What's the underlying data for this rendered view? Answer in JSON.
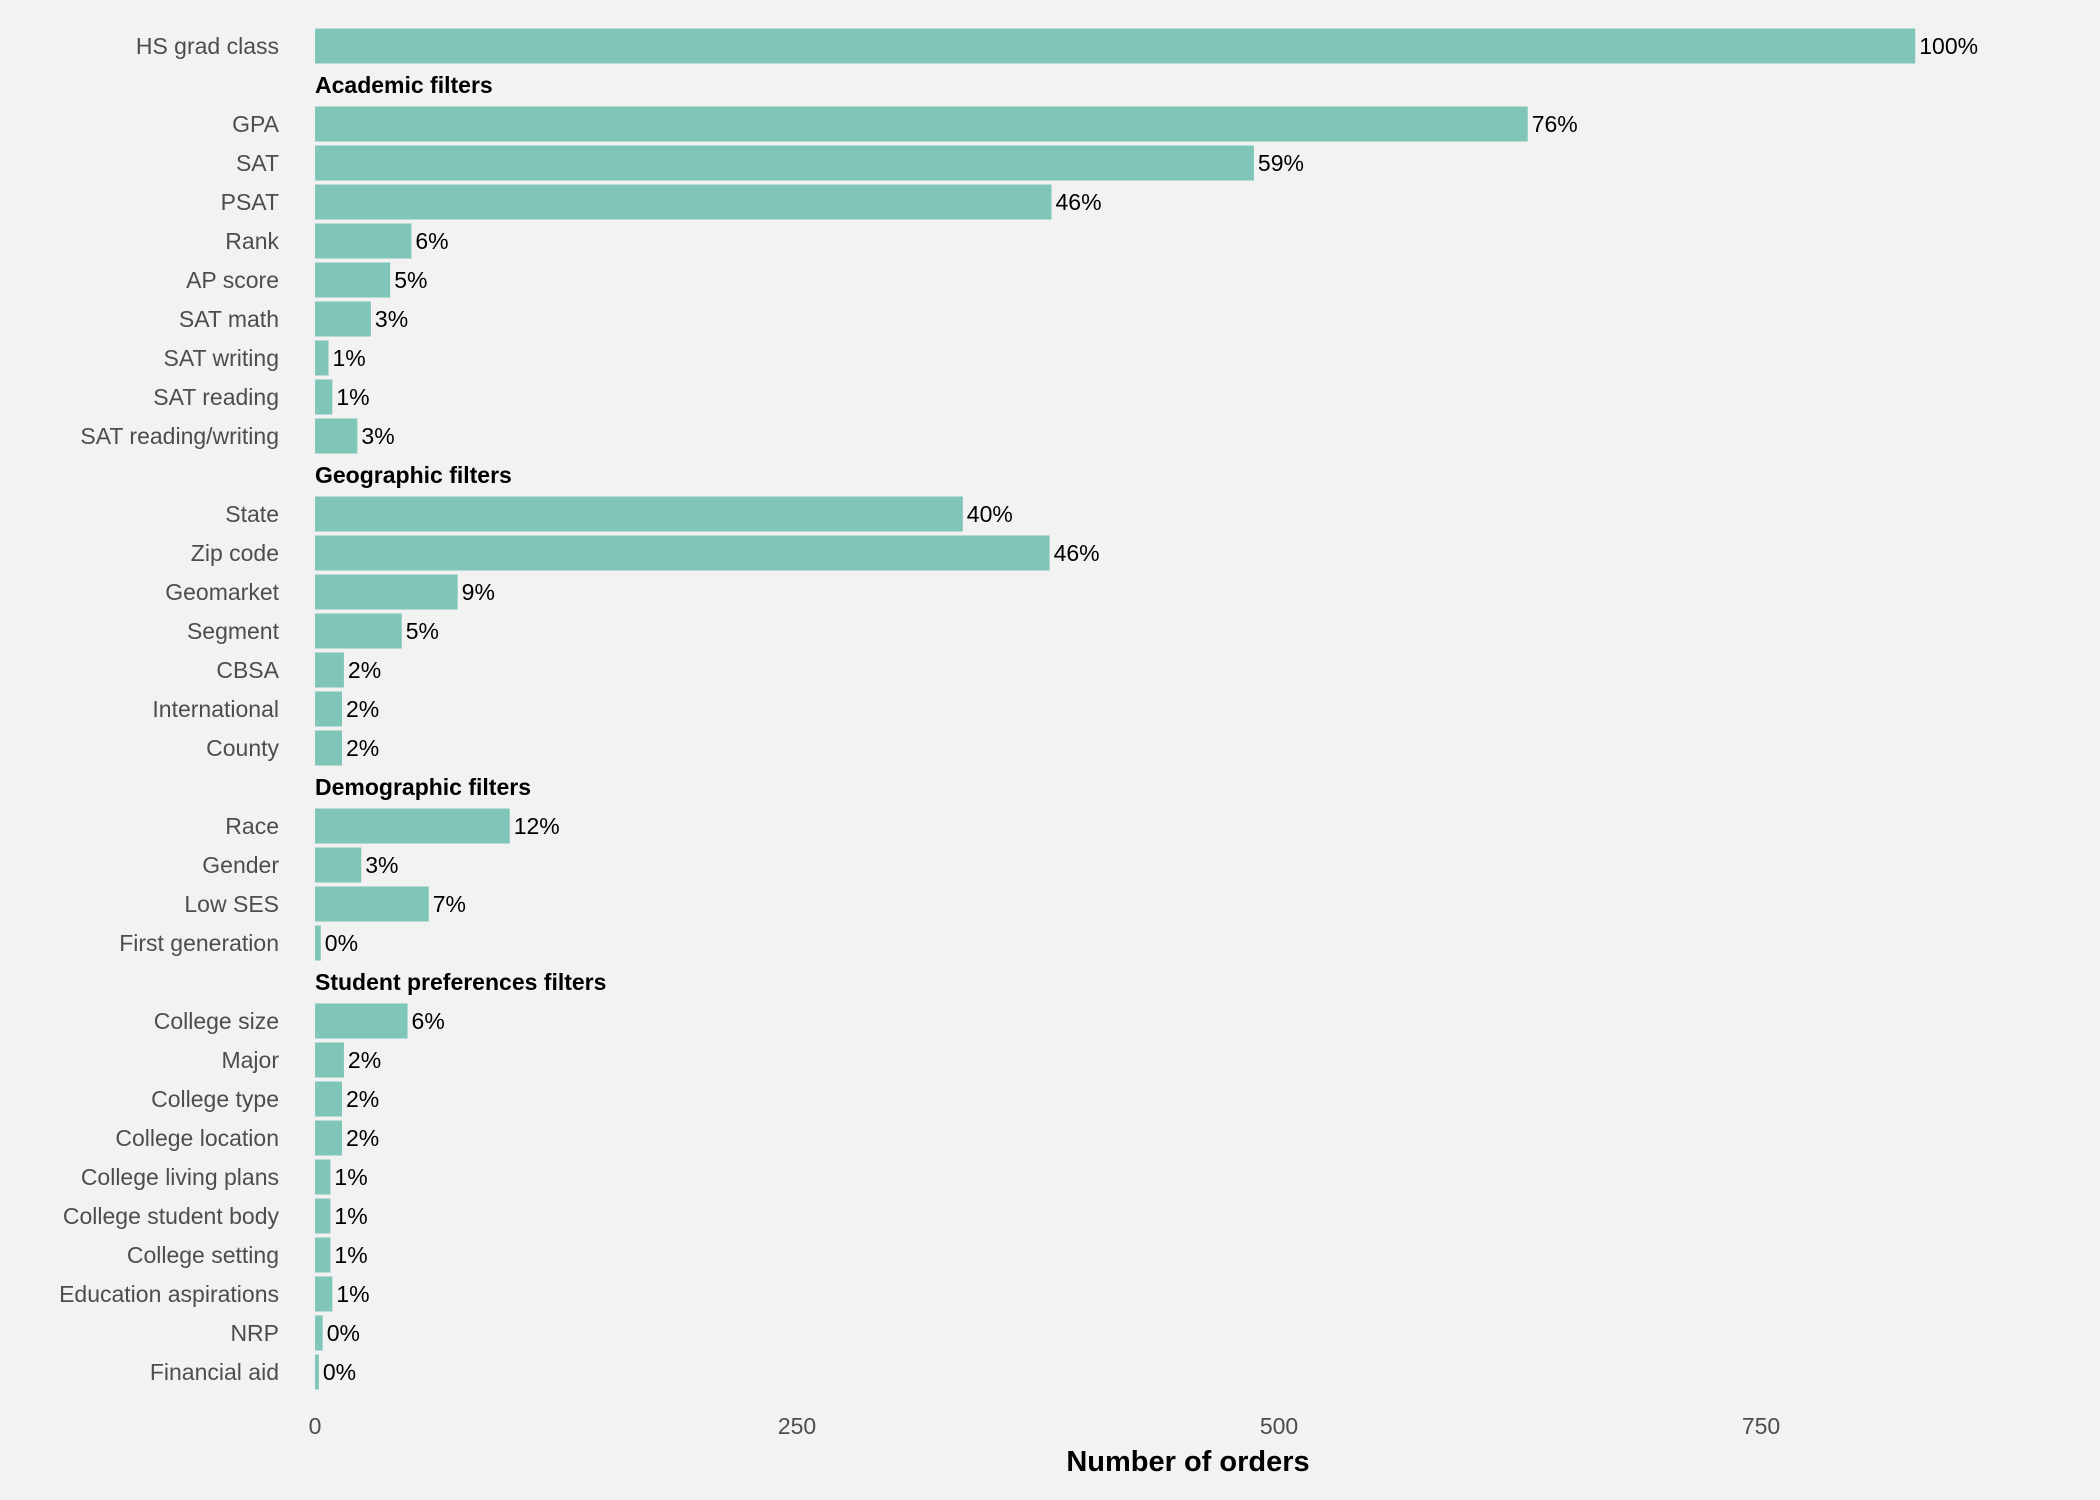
{
  "chart_data": {
    "type": "bar",
    "orientation": "horizontal",
    "title": "",
    "xlabel": "Number of orders",
    "ylabel": "",
    "xlim": [
      0,
      920
    ],
    "xticks": [
      0,
      250,
      500,
      750
    ],
    "grid": false,
    "bar_color": "#7fc6b8",
    "background": "#f2f2f2",
    "rows": [
      {
        "kind": "bar",
        "category": "HS grad class",
        "value": 830,
        "label": "100%"
      },
      {
        "kind": "group",
        "category": "Academic filters"
      },
      {
        "kind": "bar",
        "category": "GPA",
        "value": 629,
        "label": "76%"
      },
      {
        "kind": "bar",
        "category": "SAT",
        "value": 487,
        "label": "59%"
      },
      {
        "kind": "bar",
        "category": "PSAT",
        "value": 382,
        "label": "46%"
      },
      {
        "kind": "bar",
        "category": "Rank",
        "value": 50,
        "label": "6%"
      },
      {
        "kind": "bar",
        "category": "AP score",
        "value": 39,
        "label": "5%"
      },
      {
        "kind": "bar",
        "category": "SAT math",
        "value": 29,
        "label": "3%"
      },
      {
        "kind": "bar",
        "category": "SAT writing",
        "value": 7,
        "label": "1%"
      },
      {
        "kind": "bar",
        "category": "SAT reading",
        "value": 9,
        "label": "1%"
      },
      {
        "kind": "bar",
        "category": "SAT reading/writing",
        "value": 22,
        "label": "3%"
      },
      {
        "kind": "group",
        "category": "Geographic filters"
      },
      {
        "kind": "bar",
        "category": "State",
        "value": 336,
        "label": "40%"
      },
      {
        "kind": "bar",
        "category": "Zip code",
        "value": 381,
        "label": "46%"
      },
      {
        "kind": "bar",
        "category": "Geomarket",
        "value": 74,
        "label": "9%"
      },
      {
        "kind": "bar",
        "category": "Segment",
        "value": 45,
        "label": "5%"
      },
      {
        "kind": "bar",
        "category": "CBSA",
        "value": 15,
        "label": "2%"
      },
      {
        "kind": "bar",
        "category": "International",
        "value": 14,
        "label": "2%"
      },
      {
        "kind": "bar",
        "category": "County",
        "value": 14,
        "label": "2%"
      },
      {
        "kind": "group",
        "category": "Demographic filters"
      },
      {
        "kind": "bar",
        "category": "Race",
        "value": 101,
        "label": "12%"
      },
      {
        "kind": "bar",
        "category": "Gender",
        "value": 24,
        "label": "3%"
      },
      {
        "kind": "bar",
        "category": "Low SES",
        "value": 59,
        "label": "7%"
      },
      {
        "kind": "bar",
        "category": "First generation",
        "value": 3,
        "label": "0%"
      },
      {
        "kind": "group",
        "category": "Student preferences filters"
      },
      {
        "kind": "bar",
        "category": "College size",
        "value": 48,
        "label": "6%"
      },
      {
        "kind": "bar",
        "category": "Major",
        "value": 15,
        "label": "2%"
      },
      {
        "kind": "bar",
        "category": "College type",
        "value": 14,
        "label": "2%"
      },
      {
        "kind": "bar",
        "category": "College location",
        "value": 14,
        "label": "2%"
      },
      {
        "kind": "bar",
        "category": "College living plans",
        "value": 8,
        "label": "1%"
      },
      {
        "kind": "bar",
        "category": "College student body",
        "value": 8,
        "label": "1%"
      },
      {
        "kind": "bar",
        "category": "College setting",
        "value": 8,
        "label": "1%"
      },
      {
        "kind": "bar",
        "category": "Education aspirations",
        "value": 9,
        "label": "1%"
      },
      {
        "kind": "bar",
        "category": "NRP",
        "value": 4,
        "label": "0%"
      },
      {
        "kind": "bar",
        "category": "Financial aid",
        "value": 2,
        "label": "0%"
      }
    ]
  }
}
